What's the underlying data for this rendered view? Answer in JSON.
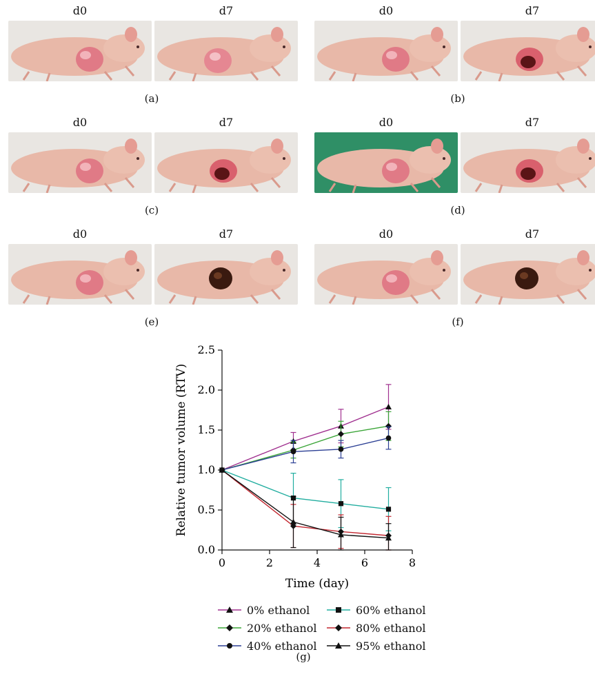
{
  "panels": [
    {
      "id": "a",
      "label": "(a)",
      "left_title": "d0",
      "right_title": "d7",
      "lesion": "small"
    },
    {
      "id": "b",
      "label": "(b)",
      "left_title": "d0",
      "right_title": "d7",
      "lesion": "dark"
    },
    {
      "id": "c",
      "label": "(c)",
      "left_title": "d0",
      "right_title": "d7",
      "lesion": "dark"
    },
    {
      "id": "d",
      "label": "(d)",
      "left_title": "d0",
      "right_title": "d7",
      "lesion": "dark"
    },
    {
      "id": "e",
      "label": "(e)",
      "left_title": "d0",
      "right_title": "d7",
      "lesion": "black"
    },
    {
      "id": "f",
      "label": "(f)",
      "left_title": "d0",
      "right_title": "d7",
      "lesion": "black"
    }
  ],
  "g_label": "(g)",
  "chart_data": {
    "type": "line",
    "xlabel": "Time (day)",
    "ylabel": "Relative tumor volume (RTV)",
    "xlim": [
      0,
      8
    ],
    "ylim": [
      0.0,
      2.5
    ],
    "xticks": [
      0,
      2,
      4,
      6,
      8
    ],
    "yticks": [
      0.0,
      0.5,
      1.0,
      1.5,
      2.0,
      2.5
    ],
    "ytick_labels": [
      "0.0",
      "0.5",
      "1.0",
      "1.5",
      "2.0",
      "2.5"
    ],
    "grid": false,
    "legend_position": "bottom",
    "x": [
      0,
      3,
      5,
      7
    ],
    "series": [
      {
        "name": "0% ethanol",
        "color": "#a0308f",
        "marker": "triangle",
        "values": [
          1.0,
          1.36,
          1.55,
          1.79
        ],
        "errors": [
          0,
          0.11,
          0.21,
          0.28
        ]
      },
      {
        "name": "20% ethanol",
        "color": "#3aa537",
        "marker": "diamond",
        "values": [
          1.0,
          1.25,
          1.45,
          1.55
        ],
        "errors": [
          0,
          0.1,
          0.16,
          0.18
        ]
      },
      {
        "name": "40% ethanol",
        "color": "#2b3f94",
        "marker": "circle",
        "values": [
          1.0,
          1.23,
          1.26,
          1.4
        ],
        "errors": [
          0,
          0.14,
          0.11,
          0.14
        ]
      },
      {
        "name": "60% ethanol",
        "color": "#21ad9f",
        "marker": "square",
        "values": [
          1.0,
          0.65,
          0.58,
          0.51
        ],
        "errors": [
          0,
          0.31,
          0.3,
          0.27
        ]
      },
      {
        "name": "80% ethanol",
        "color": "#c2262f",
        "marker": "diamond",
        "values": [
          1.0,
          0.3,
          0.23,
          0.18
        ],
        "errors": [
          0,
          0.27,
          0.21,
          0.24
        ]
      },
      {
        "name": "95% ethanol",
        "color": "#111111",
        "marker": "triangle",
        "values": [
          1.0,
          0.35,
          0.19,
          0.15
        ],
        "errors": [
          0,
          0.32,
          0.22,
          0.18
        ]
      }
    ]
  }
}
